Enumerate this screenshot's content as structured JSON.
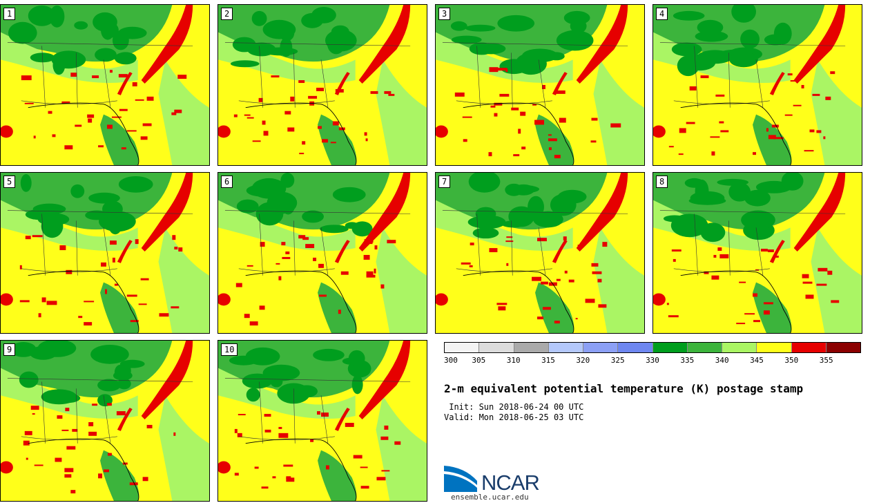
{
  "panels": [
    {
      "label": "1"
    },
    {
      "label": "2"
    },
    {
      "label": "3"
    },
    {
      "label": "4"
    },
    {
      "label": "5"
    },
    {
      "label": "6"
    },
    {
      "label": "7"
    },
    {
      "label": "8"
    },
    {
      "label": "9"
    },
    {
      "label": "10"
    }
  ],
  "colorbar": {
    "colors": [
      "#f4f4f4",
      "#dcdcdc",
      "#aaaaaa",
      "#b4c8fa",
      "#8ca0f5",
      "#6e87f0",
      "#009e1e",
      "#3cb43c",
      "#aaf564",
      "#ffff1a",
      "#e60000",
      "#8b0000"
    ],
    "ticks": [
      "300",
      "305",
      "310",
      "315",
      "320",
      "325",
      "330",
      "335",
      "340",
      "345",
      "350",
      "355"
    ]
  },
  "title": "2-m equivalent potential temperature (K) postage stamp",
  "init": " Init: Sun 2018-06-24 00 UTC",
  "valid": "Valid: Mon 2018-06-25 03 UTC",
  "logo": {
    "text": "NCAR",
    "url": "ensemble.ucar.edu"
  }
}
